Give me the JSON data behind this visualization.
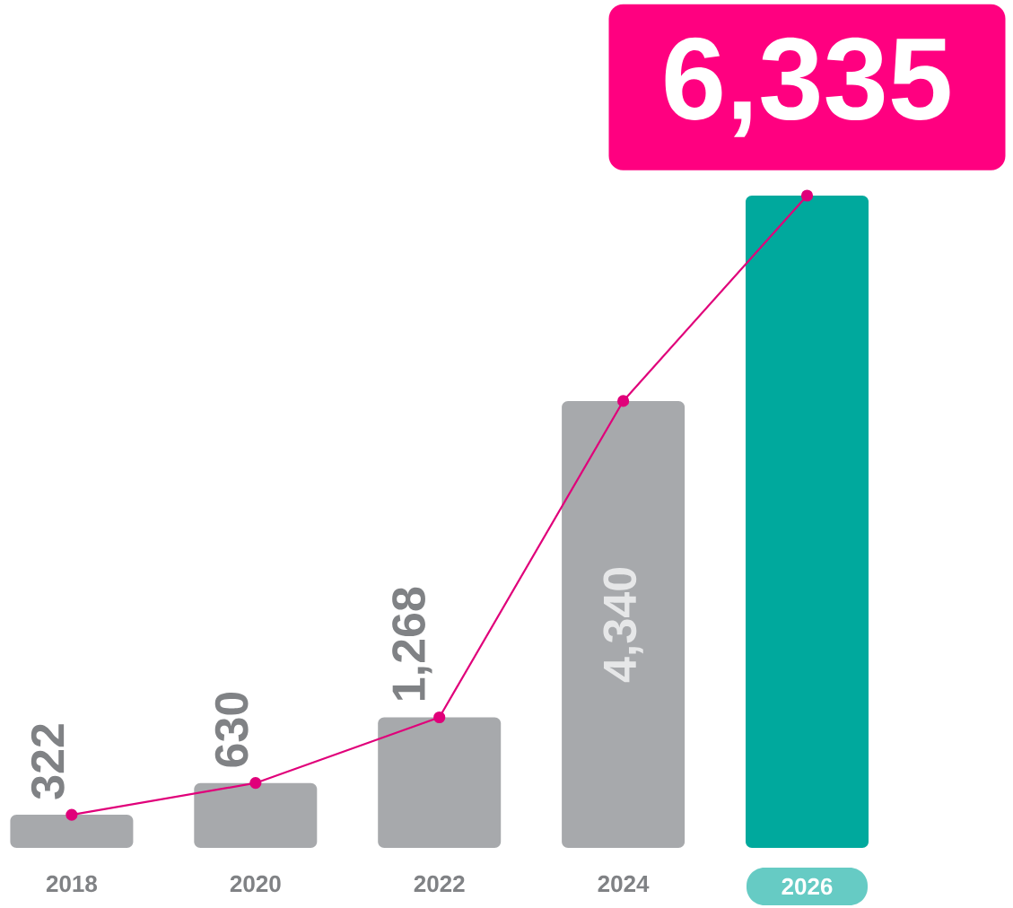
{
  "chart_data": {
    "type": "bar",
    "categories": [
      "2018",
      "2020",
      "2022",
      "2024",
      "2026"
    ],
    "series": [
      {
        "colors": [
          "#a7a9ac",
          "#a7a9ac",
          "#a7a9ac",
          "#a7a9ac",
          "#00a99d"
        ],
        "values": [
          322,
          630,
          1268,
          4340,
          6335
        ],
        "value_labels": [
          "322",
          "630",
          "1,268",
          "4,340",
          "6,335"
        ]
      },
      {
        "type": "line",
        "color": "#e0007a",
        "values": [
          322,
          630,
          1268,
          4340,
          6335
        ]
      }
    ],
    "marker": "circle"
  }
}
